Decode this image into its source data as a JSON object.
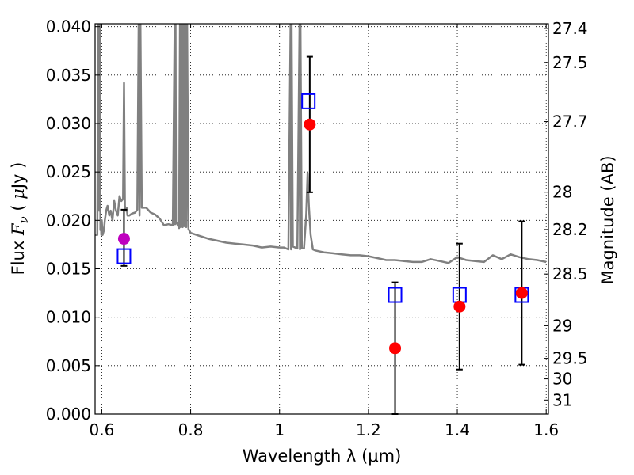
{
  "chart_data": {
    "type": "scatter",
    "xlabel": "Wavelength  λ (μm)",
    "ylabel": "Flux  F_ν  ( μJy )",
    "ylabel_parts": {
      "pre": "Flux  ",
      "sym": "F",
      "sub": "ν",
      "mid": "  ( ",
      "mu": "μ",
      "post": "Jy )"
    },
    "y2label": "Magnitude (AB)",
    "xlim": [
      0.585,
      1.605
    ],
    "ylim": [
      0.0,
      0.0403
    ],
    "grid": true,
    "legend": "none",
    "x_ticks": [
      0.6,
      0.8,
      1.0,
      1.2,
      1.4,
      1.6
    ],
    "x_tick_labels": [
      "0.6",
      "0.8",
      "1",
      "1.2",
      "1.4",
      "1.6"
    ],
    "y_ticks": [
      0.0,
      0.005,
      0.01,
      0.015,
      0.02,
      0.025,
      0.03,
      0.035,
      0.04
    ],
    "y_tick_labels": [
      "0.000",
      "0.005",
      "0.010",
      "0.015",
      "0.020",
      "0.025",
      "0.030",
      "0.035",
      "0.040"
    ],
    "y2_ticks": [
      27.4,
      27.5,
      27.7,
      28,
      28.2,
      28.5,
      29,
      29.5,
      30,
      31
    ],
    "y2_tick_labels": [
      "27.4",
      "27.5",
      "27.7",
      "28",
      "28.2",
      "28.5",
      "29",
      "29.5",
      "30",
      "31"
    ],
    "observed": [
      {
        "x": 0.65,
        "y": 0.0181,
        "err_low": 0.0153,
        "err_high": 0.0211,
        "color": "#bf00bf"
      },
      {
        "x": 1.068,
        "y": 0.0299,
        "err_low": 0.0229,
        "err_high": 0.0369,
        "color": "#ff0000"
      },
      {
        "x": 1.26,
        "y": 0.0068,
        "err_low": 0.0,
        "err_high": 0.0136,
        "color": "#ff0000"
      },
      {
        "x": 1.405,
        "y": 0.0111,
        "err_low": 0.0046,
        "err_high": 0.0176,
        "color": "#ff0000"
      },
      {
        "x": 1.545,
        "y": 0.0125,
        "err_low": 0.0051,
        "err_high": 0.0199,
        "color": "#ff0000"
      }
    ],
    "model_photometry": {
      "color": "#0000ff",
      "points": [
        {
          "x": 0.65,
          "y": 0.0163
        },
        {
          "x": 1.065,
          "y": 0.0323
        },
        {
          "x": 1.26,
          "y": 0.0123
        },
        {
          "x": 1.405,
          "y": 0.0123
        },
        {
          "x": 1.545,
          "y": 0.0123
        }
      ]
    },
    "sed_model": {
      "color": "#808080",
      "x": [
        0.585,
        0.59,
        0.592,
        0.594,
        0.596,
        0.597,
        0.598,
        0.599,
        0.6,
        0.602,
        0.605,
        0.607,
        0.61,
        0.613,
        0.617,
        0.62,
        0.624,
        0.628,
        0.632,
        0.636,
        0.64,
        0.644,
        0.648,
        0.65,
        0.652,
        0.654,
        0.656,
        0.658,
        0.662,
        0.668,
        0.675,
        0.68,
        0.683,
        0.685,
        0.687,
        0.69,
        0.7,
        0.71,
        0.72,
        0.73,
        0.74,
        0.75,
        0.76,
        0.764,
        0.765,
        0.766,
        0.767,
        0.768,
        0.77,
        0.774,
        0.776,
        0.778,
        0.78,
        0.782,
        0.784,
        0.786,
        0.788,
        0.79,
        0.792,
        0.795,
        0.8,
        0.82,
        0.84,
        0.86,
        0.88,
        0.9,
        0.92,
        0.94,
        0.96,
        0.98,
        1.0,
        1.01,
        1.02,
        1.025,
        1.026,
        1.027,
        1.03,
        1.04,
        1.045,
        1.046,
        1.047,
        1.05,
        1.055,
        1.06,
        1.063,
        1.066,
        1.07,
        1.075,
        1.08,
        1.1,
        1.12,
        1.14,
        1.16,
        1.18,
        1.2,
        1.22,
        1.24,
        1.26,
        1.28,
        1.3,
        1.32,
        1.34,
        1.36,
        1.38,
        1.4,
        1.42,
        1.44,
        1.46,
        1.48,
        1.5,
        1.52,
        1.54,
        1.56,
        1.58,
        1.6
      ],
      "y": [
        0.0185,
        0.0185,
        0.0403,
        0.021,
        0.0403,
        0.019,
        0.02,
        0.0185,
        0.02,
        0.0185,
        0.019,
        0.02,
        0.021,
        0.0215,
        0.0205,
        0.021,
        0.02,
        0.022,
        0.021,
        0.0205,
        0.0225,
        0.022,
        0.0222,
        0.0342,
        0.0215,
        0.021,
        0.0213,
        0.0205,
        0.0205,
        0.0207,
        0.0208,
        0.0211,
        0.0403,
        0.0205,
        0.0403,
        0.0213,
        0.0213,
        0.0208,
        0.0206,
        0.0202,
        0.0195,
        0.0196,
        0.0195,
        0.0403,
        0.0196,
        0.0403,
        0.0197,
        0.0198,
        0.0196,
        0.0192,
        0.0403,
        0.0193,
        0.0403,
        0.0193,
        0.0403,
        0.0194,
        0.0403,
        0.0193,
        0.0403,
        0.0191,
        0.0187,
        0.0184,
        0.0181,
        0.0179,
        0.0177,
        0.0176,
        0.0175,
        0.0174,
        0.0172,
        0.0173,
        0.0172,
        0.0172,
        0.017,
        0.0403,
        0.017,
        0.0403,
        0.0173,
        0.0171,
        0.0403,
        0.017,
        0.0403,
        0.0171,
        0.0171,
        0.0206,
        0.0248,
        0.0215,
        0.0185,
        0.017,
        0.0169,
        0.0167,
        0.0166,
        0.0165,
        0.0164,
        0.0164,
        0.0163,
        0.0161,
        0.0159,
        0.0159,
        0.0158,
        0.0157,
        0.0157,
        0.016,
        0.0158,
        0.0156,
        0.0162,
        0.0159,
        0.0158,
        0.0157,
        0.0164,
        0.016,
        0.0165,
        0.0162,
        0.016,
        0.0159,
        0.0157
      ]
    }
  }
}
